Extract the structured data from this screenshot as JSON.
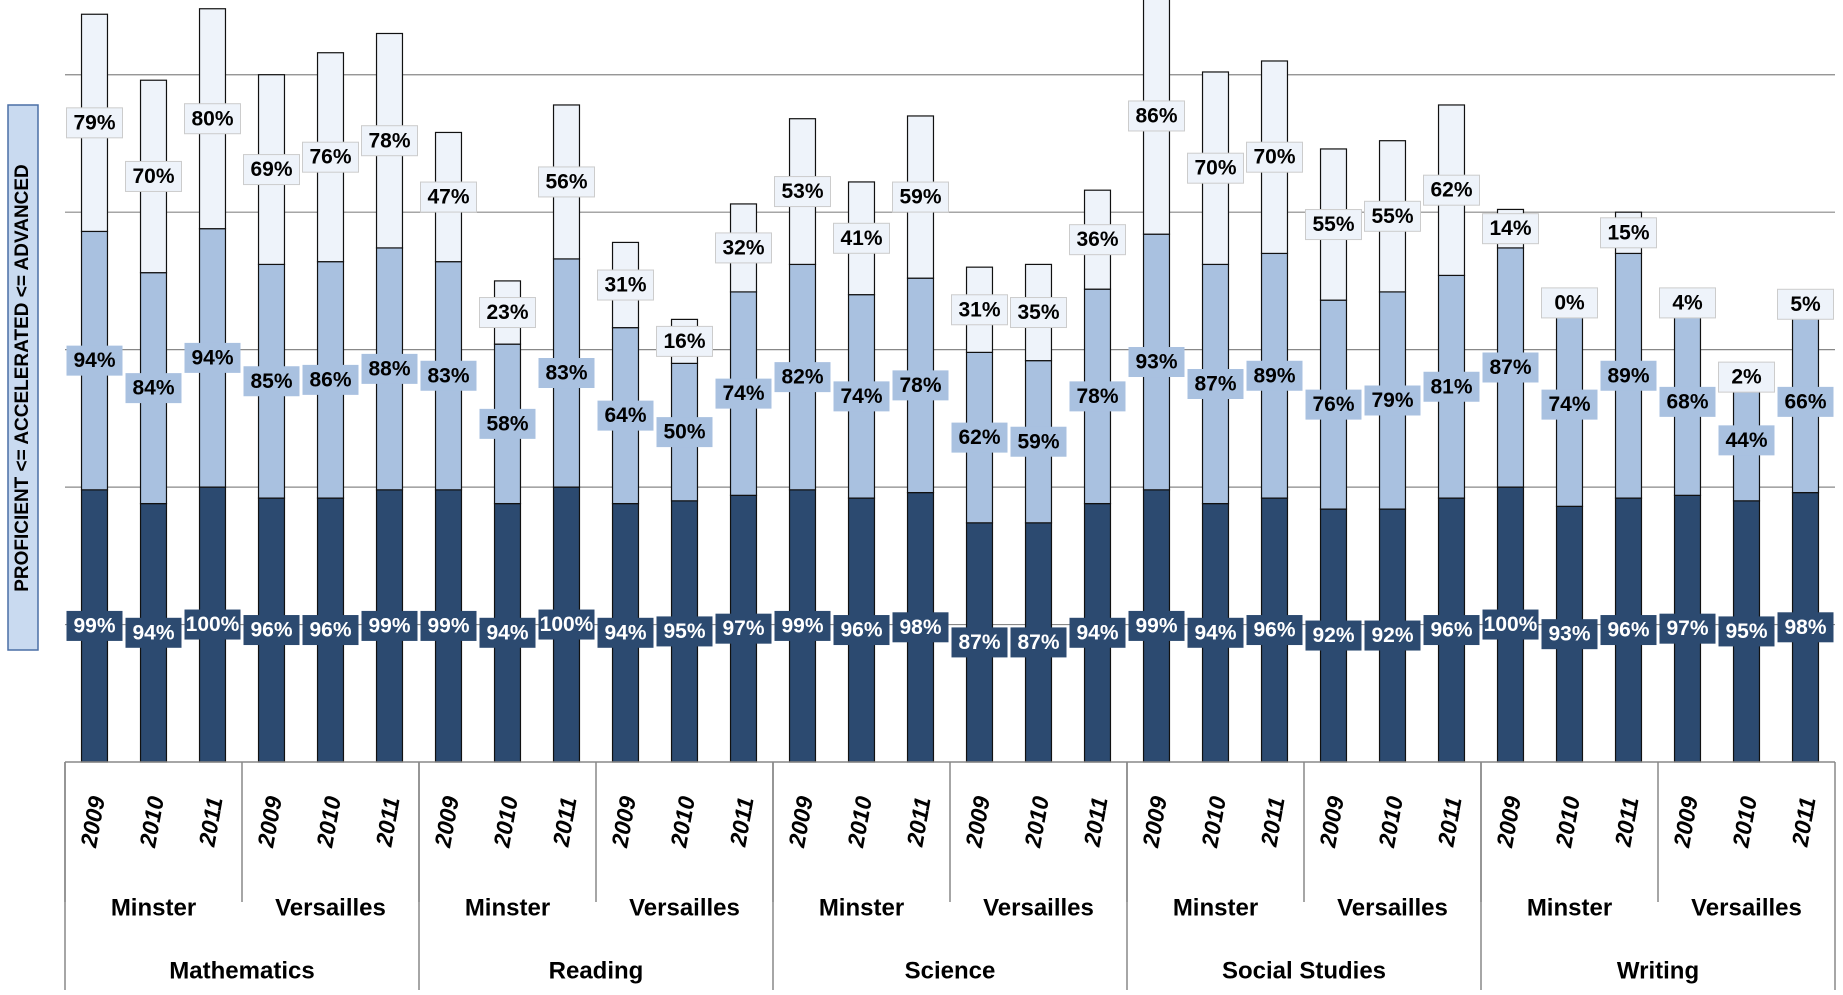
{
  "chart_data": {
    "type": "bar",
    "stacked": true,
    "y_label": "PROFICIENT <= ACCELERATED <= ADVANCED",
    "categories": [
      "2009",
      "2010",
      "2011",
      "2009",
      "2010",
      "2011",
      "2009",
      "2010",
      "2011",
      "2009",
      "2010",
      "2011",
      "2009",
      "2010",
      "2011",
      "2009",
      "2010",
      "2011",
      "2009",
      "2010",
      "2011",
      "2009",
      "2010",
      "2011",
      "2009",
      "2010",
      "2011",
      "2009",
      "2010",
      "2011"
    ],
    "groups": [
      "Minster",
      "Versailles",
      "Minster",
      "Versailles",
      "Minster",
      "Versailles",
      "Minster",
      "Versailles",
      "Minster",
      "Versailles"
    ],
    "supergroups": [
      "Mathematics",
      "Reading",
      "Science",
      "Social Studies",
      "Writing"
    ],
    "series": [
      {
        "color": "#2c4a70",
        "values": [
          99,
          94,
          100,
          96,
          96,
          99,
          99,
          94,
          100,
          94,
          95,
          97,
          99,
          96,
          98,
          87,
          87,
          94,
          99,
          94,
          96,
          92,
          92,
          96,
          100,
          93,
          96,
          97,
          95,
          98
        ],
        "value_labels": [
          "99%",
          "94%",
          "100%",
          "96%",
          "96%",
          "99%",
          "99%",
          "94%",
          "100%",
          "94%",
          "95%",
          "97%",
          "99%",
          "96%",
          "98%",
          "87%",
          "87%",
          "94%",
          "99%",
          "94%",
          "96%",
          "92%",
          "92%",
          "96%",
          "100%",
          "93%",
          "96%",
          "97%",
          "95%",
          "98%"
        ]
      },
      {
        "color": "#a9c1e0",
        "values": [
          94,
          84,
          94,
          85,
          86,
          88,
          83,
          58,
          83,
          64,
          50,
          74,
          82,
          74,
          78,
          62,
          59,
          78,
          93,
          87,
          89,
          76,
          79,
          81,
          87,
          74,
          89,
          68,
          44,
          66
        ],
        "value_labels": [
          "94%",
          "84%",
          "94%",
          "85%",
          "86%",
          "88%",
          "83%",
          "58%",
          "83%",
          "64%",
          "50%",
          "74%",
          "82%",
          "74%",
          "78%",
          "62%",
          "59%",
          "78%",
          "93%",
          "87%",
          "89%",
          "76%",
          "79%",
          "81%",
          "87%",
          "74%",
          "89%",
          "68%",
          "44%",
          "66%"
        ]
      },
      {
        "color": "#eef3fa",
        "values": [
          79,
          70,
          80,
          69,
          76,
          78,
          47,
          23,
          56,
          31,
          16,
          32,
          53,
          41,
          59,
          31,
          35,
          36,
          86,
          70,
          70,
          55,
          55,
          62,
          14,
          0,
          15,
          4,
          2,
          5
        ],
        "value_labels": [
          "79%",
          "70%",
          "80%",
          "69%",
          "76%",
          "78%",
          "47%",
          "23%",
          "56%",
          "31%",
          "16%",
          "32%",
          "53%",
          "41%",
          "59%",
          "31%",
          "35%",
          "36%",
          "86%",
          "70%",
          "70%",
          "55%",
          "55%",
          "62%",
          "14%",
          "0%",
          "15%",
          "4%",
          "2%",
          "5%"
        ]
      }
    ],
    "ylim": [
      0,
      275
    ],
    "yticks": [
      50,
      100,
      150,
      200,
      250
    ],
    "grid": true
  }
}
